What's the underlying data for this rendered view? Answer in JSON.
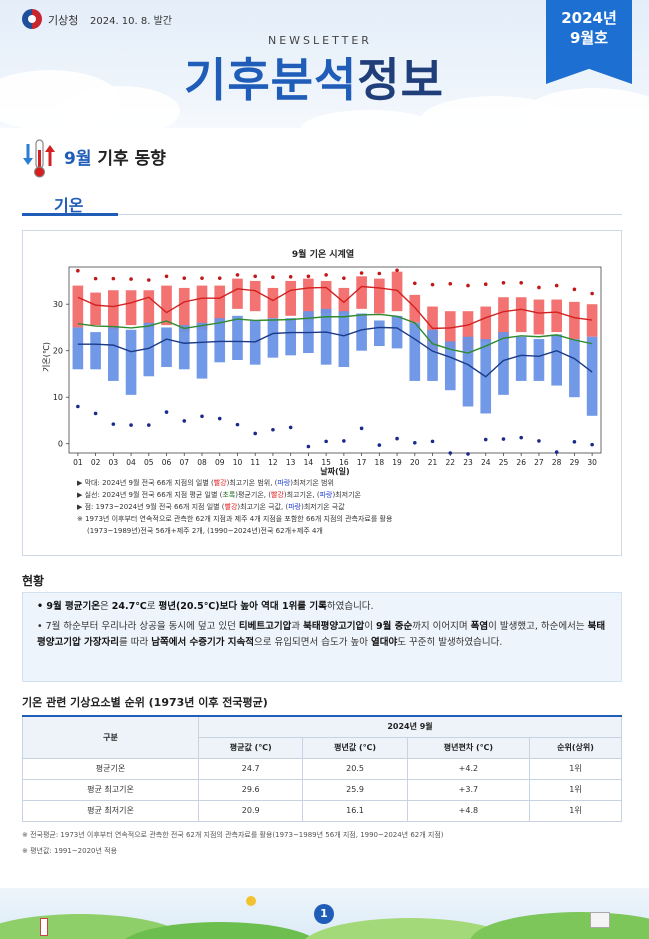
{
  "header": {
    "agency": "기상청",
    "pub_date": "2024. 10. 8. 발간",
    "newsletter": "NEWSLETTER",
    "title_part1": "기후분석",
    "title_part2": "정보",
    "ribbon_year": "2024년",
    "ribbon_issue": "9월호"
  },
  "section": {
    "title_highlight": "9월",
    "title_rest": " 기후 동향",
    "subtitle": "기온"
  },
  "chart_data": {
    "type": "bar",
    "title": "9월 기온 시계열",
    "xlabel": "날짜(일)",
    "ylabel": "기온(℃)",
    "ylim": [
      -2,
      38
    ],
    "yticks": [
      0,
      10,
      20,
      30
    ],
    "categories": [
      "01",
      "02",
      "03",
      "04",
      "05",
      "06",
      "07",
      "08",
      "09",
      "10",
      "11",
      "12",
      "13",
      "14",
      "15",
      "16",
      "17",
      "18",
      "19",
      "20",
      "21",
      "22",
      "23",
      "24",
      "25",
      "26",
      "27",
      "28",
      "29",
      "30"
    ],
    "max_range": {
      "name": "일별 최고기온 범위",
      "low": [
        25.0,
        25.5,
        24.5,
        25.5,
        25.0,
        25.5,
        24.0,
        24.5,
        26.0,
        29.0,
        28.5,
        27.0,
        27.5,
        26.5,
        28.0,
        28.0,
        29.0,
        28.0,
        28.5,
        26.0,
        20.0,
        20.5,
        20.0,
        22.0,
        22.5,
        24.0,
        23.5,
        24.0,
        22.5,
        23.0
      ],
      "high": [
        34.0,
        32.5,
        33.0,
        33.0,
        33.0,
        34.0,
        33.5,
        34.0,
        34.0,
        35.5,
        35.0,
        33.5,
        35.0,
        35.5,
        35.0,
        33.5,
        36.0,
        35.5,
        37.0,
        32.0,
        29.5,
        28.5,
        28.5,
        29.5,
        31.5,
        31.5,
        31.0,
        31.0,
        30.5,
        30.0
      ]
    },
    "min_range": {
      "name": "일별 최저기온 범위",
      "low": [
        16.0,
        16.0,
        13.5,
        10.5,
        14.5,
        16.5,
        16.0,
        14.0,
        17.5,
        18.0,
        17.0,
        18.5,
        19.0,
        19.5,
        17.0,
        16.5,
        20.0,
        21.0,
        20.5,
        13.5,
        13.5,
        11.5,
        8.0,
        6.5,
        10.5,
        13.5,
        13.5,
        12.5,
        10.0,
        6.0
      ],
      "high": [
        25.0,
        24.0,
        25.0,
        24.5,
        26.0,
        25.0,
        25.5,
        26.0,
        27.0,
        27.5,
        26.5,
        27.0,
        27.0,
        28.5,
        29.0,
        28.5,
        28.0,
        26.5,
        27.5,
        26.0,
        24.5,
        22.0,
        23.0,
        22.5,
        24.0,
        23.0,
        22.5,
        23.5,
        22.5,
        23.0
      ]
    },
    "series": [
      {
        "name": "평균기온",
        "color": "#2e8b2e",
        "values": [
          25.8,
          25.3,
          25.2,
          24.9,
          25.3,
          26.4,
          24.8,
          25.4,
          26.0,
          26.8,
          26.5,
          26.6,
          26.7,
          27.0,
          27.3,
          27.3,
          27.7,
          27.8,
          27.4,
          26.0,
          21.5,
          20.3,
          19.5,
          21.0,
          22.7,
          23.2,
          23.0,
          23.4,
          22.3,
          21.5
        ]
      },
      {
        "name": "최고기온",
        "color": "#d42020",
        "values": [
          31.5,
          29.8,
          29.5,
          30.3,
          31.5,
          28.2,
          30.5,
          31.3,
          31.3,
          33.3,
          32.9,
          30.8,
          33.0,
          33.5,
          33.6,
          30.4,
          33.8,
          33.5,
          33.0,
          29.3,
          24.8,
          24.9,
          25.5,
          27.1,
          28.4,
          28.9,
          28.1,
          28.3,
          27.1,
          26.6
        ]
      },
      {
        "name": "최저기온",
        "color": "#1a3a8a",
        "values": [
          21.4,
          21.4,
          21.2,
          19.8,
          20.5,
          22.5,
          21.6,
          21.8,
          22.0,
          22.0,
          21.9,
          23.7,
          23.9,
          23.9,
          24.0,
          23.2,
          24.5,
          25.0,
          24.9,
          22.5,
          19.9,
          18.6,
          17.0,
          14.4,
          17.9,
          19.0,
          18.8,
          20.0,
          18.3,
          15.4
        ]
      }
    ],
    "max_extreme": {
      "name": "최고기온 극값",
      "values": [
        37.2,
        35.5,
        35.5,
        35.4,
        35.2,
        36.0,
        35.6,
        35.6,
        35.6,
        36.3,
        36.0,
        35.8,
        35.9,
        36.0,
        36.3,
        35.6,
        36.7,
        36.6,
        37.3,
        34.5,
        34.2,
        34.4,
        34.0,
        34.3,
        34.6,
        34.6,
        33.6,
        34.0,
        33.2,
        32.3
      ]
    },
    "min_extreme": {
      "name": "최저기온 극값",
      "values": [
        8.0,
        6.5,
        4.2,
        4.0,
        4.0,
        6.8,
        4.9,
        5.9,
        5.4,
        4.1,
        2.2,
        3.0,
        3.5,
        -0.6,
        0.5,
        0.6,
        3.3,
        -0.3,
        1.1,
        0.2,
        0.5,
        -2.0,
        -2.2,
        0.9,
        1.0,
        1.3,
        0.6,
        -1.8,
        0.4,
        -0.2
      ]
    }
  },
  "legend": {
    "line1_prefix": "▶ 막대: 2024년 9월 전국 66개 지점의 일별 (",
    "line1_red": "빨강",
    "line1_mid": ")최고기온 범위, (",
    "line1_blue": "파랑",
    "line1_suffix": ")최저기온 범위",
    "line2_prefix": "▶ 실선: 2024년 9월 전국 66개 지점 평균 일별 (",
    "line2_green": "초록",
    "line2_mid1": ")평균기온, (",
    "line2_red": "빨강",
    "line2_mid2": ")최고기온, (",
    "line2_blue": "파랑",
    "line2_suffix": ")최저기온",
    "line3_prefix": "▶ 점: 1973~2024년 9월 전국 66개 지점 일별 (",
    "line3_red": "빨강",
    "line3_mid": ")최고기온 극값, (",
    "line3_blue": "파랑",
    "line3_suffix": ")최저기온 극값",
    "line4": "※ 1973년 이후부터 연속적으로 관측한 62개 지점과 제주 4개 지점을 포함한 66개 지점의 관측자료를 활용",
    "line5": "(1973~1989년)전국 56개+제주 2개, (1990~2024년)전국 62개+제주 4개"
  },
  "status": {
    "title": "현황",
    "p1_a": "• 9월 평균기온",
    "p1_b": "은 ",
    "p1_c": "24.7℃",
    "p1_d": "로 ",
    "p1_e": "평년(20.5℃)보다 높아 역대 1위를 기록",
    "p1_f": "하였습니다.",
    "p2_a": "• 7월 하순부터 우리나라 상공을 동시에 덮고 있던 ",
    "p2_b": "티베트고기압",
    "p2_c": "과 ",
    "p2_d": "북태평양고기압",
    "p2_e": "이 ",
    "p2_f": "9월 중순",
    "p2_g": "까지 이어지며 ",
    "p2_h": "폭염",
    "p2_i": "이 발생했고, 하순에서는 ",
    "p2_j": "북태평양고기압 가장자리",
    "p2_k": "를 따라 ",
    "p2_l": "남쪽에서 수증기가 지속적",
    "p2_m": "으로 유입되면서 습도가 높아 ",
    "p2_n": "열대야",
    "p2_o": "도 꾸준히 발생하였습니다."
  },
  "table": {
    "title": "기온 관련 기상요소별 순위 (1973년 이후 전국평균)",
    "header_group": "구분",
    "header_period": "2024년 9월",
    "columns": [
      "평균값 (℃)",
      "평년값 (℃)",
      "평년편차 (℃)",
      "순위(상위)"
    ],
    "rows": [
      {
        "label": "평균기온",
        "cells": [
          "24.7",
          "20.5",
          "+4.2",
          "1위"
        ]
      },
      {
        "label": "평균 최고기온",
        "cells": [
          "29.6",
          "25.9",
          "+3.7",
          "1위"
        ]
      },
      {
        "label": "평균 최저기온",
        "cells": [
          "20.9",
          "16.1",
          "+4.8",
          "1위"
        ]
      }
    ]
  },
  "notes": {
    "n1": "※ 전국평균: 1973년 이후부터 연속적으로 관측한 전국 62개 지점의 관측자료를 활용(1973~1989년 56개 지점, 1990~2024년 62개 지점)",
    "n2": "※ 평년값: 1991~2020년 적용"
  },
  "footer": {
    "page": "1"
  }
}
